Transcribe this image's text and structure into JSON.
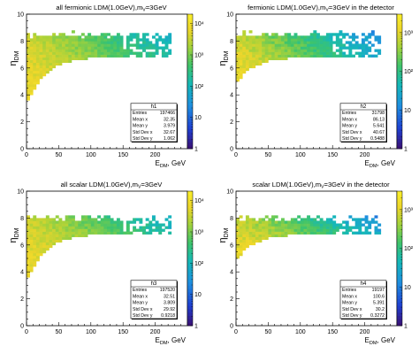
{
  "chart_data": [
    {
      "type": "heatmap",
      "title": "all fermionic LDM(1.0GeV),m",
      "title_sub": "V",
      "title_tail": "=3GeV",
      "xlabel": "E",
      "xlabel_sub": "DM",
      "xlabel_tail": ", GeV",
      "ylabel": "η",
      "ylabel_sub": "DM",
      "xlim": [
        0,
        250
      ],
      "ylim": [
        0,
        10
      ],
      "x_ticks": [
        "0",
        "50",
        "100",
        "150",
        "200"
      ],
      "y_ticks": [
        "0",
        "2",
        "4",
        "6",
        "8",
        "10"
      ],
      "z_scale": "log",
      "z_ticks": [
        "1",
        "10",
        "10²",
        "10³",
        "10⁴"
      ],
      "z_max": 20000,
      "band_floor_eta": 3.4,
      "band_saturation_eta": 7.0,
      "band_rise_gev": 30,
      "band_top_eta": 8.5,
      "peak_density": 8000,
      "stats": {
        "name": "h1",
        "rows": [
          [
            "Entries",
            "197466"
          ],
          [
            "Mean x",
            "32.35"
          ],
          [
            "Mean y",
            "3.979"
          ],
          [
            "Std Dev x",
            "32.67"
          ],
          [
            "Std Dev y",
            "1.062"
          ]
        ]
      }
    },
    {
      "type": "heatmap",
      "title": "fermionic LDM(1.0GeV),m",
      "title_sub": "V",
      "title_tail": "=3GeV in the detector",
      "xlabel": "E",
      "xlabel_sub": "DM",
      "xlabel_tail": ", GeV",
      "ylabel": "η",
      "ylabel_sub": "DM",
      "xlim": [
        0,
        250
      ],
      "ylim": [
        0,
        10
      ],
      "x_ticks": [
        "0",
        "50",
        "100",
        "150",
        "200"
      ],
      "y_ticks": [
        "0",
        "2",
        "4",
        "6",
        "8",
        "10"
      ],
      "z_scale": "log",
      "z_ticks": [
        "1",
        "10",
        "10²",
        "10³"
      ],
      "z_max": 3000,
      "band_floor_eta": 5.0,
      "band_saturation_eta": 7.0,
      "band_rise_gev": 30,
      "band_top_eta": 8.5,
      "peak_density": 1500,
      "stats": {
        "name": "h2",
        "rows": [
          [
            "Entries",
            "31798"
          ],
          [
            "Mean x",
            "86.13"
          ],
          [
            "Mean y",
            "5.641"
          ],
          [
            "Std Dev x",
            "40.67"
          ],
          [
            "Std Dev y",
            "0.5488"
          ]
        ]
      }
    },
    {
      "type": "heatmap",
      "title": "all scalar LDM(1.0GeV),m",
      "title_sub": "V",
      "title_tail": "=3GeV",
      "xlabel": "E",
      "xlabel_sub": "DM",
      "xlabel_tail": ", GeV",
      "ylabel": "η",
      "ylabel_sub": "DM",
      "xlim": [
        0,
        250
      ],
      "ylim": [
        0,
        10
      ],
      "x_ticks": [
        "0",
        "50",
        "100",
        "150",
        "200"
      ],
      "y_ticks": [
        "0",
        "2",
        "4",
        "6",
        "8",
        "10"
      ],
      "z_scale": "log",
      "z_ticks": [
        "1",
        "10",
        "10²",
        "10³",
        "10⁴"
      ],
      "z_max": 20000,
      "band_floor_eta": 3.4,
      "band_saturation_eta": 7.0,
      "band_rise_gev": 30,
      "band_top_eta": 8.0,
      "peak_density": 8000,
      "stats": {
        "name": "h3",
        "rows": [
          [
            "Entries",
            "197520"
          ],
          [
            "Mean x",
            "32.51"
          ],
          [
            "Mean y",
            "3.809"
          ],
          [
            "Std Dev x",
            "29.92"
          ],
          [
            "Std Dev y",
            "0.9218"
          ]
        ]
      }
    },
    {
      "type": "heatmap",
      "title": "scalar LDM(1.0GeV),m",
      "title_sub": "V",
      "title_tail": "=3GeV in the detector",
      "xlabel": "E",
      "xlabel_sub": "DM",
      "xlabel_tail": ", GeV",
      "ylabel": "η",
      "ylabel_sub": "DM",
      "xlim": [
        0,
        250
      ],
      "ylim": [
        0,
        10
      ],
      "x_ticks": [
        "0",
        "50",
        "100",
        "150",
        "200"
      ],
      "y_ticks": [
        "0",
        "2",
        "4",
        "6",
        "8",
        "10"
      ],
      "z_scale": "log",
      "z_ticks": [
        "1",
        "10",
        "10²",
        "10³"
      ],
      "z_max": 3000,
      "band_floor_eta": 5.0,
      "band_saturation_eta": 7.0,
      "band_rise_gev": 30,
      "band_top_eta": 8.0,
      "peak_density": 1500,
      "stats": {
        "name": "h4",
        "rows": [
          [
            "Entries",
            "19197"
          ],
          [
            "Mean x",
            "100.6"
          ],
          [
            "Mean y",
            "5.391"
          ],
          [
            "Std Dev x",
            "30.2"
          ],
          [
            "Std Dev y",
            "0.3272"
          ]
        ]
      }
    }
  ]
}
